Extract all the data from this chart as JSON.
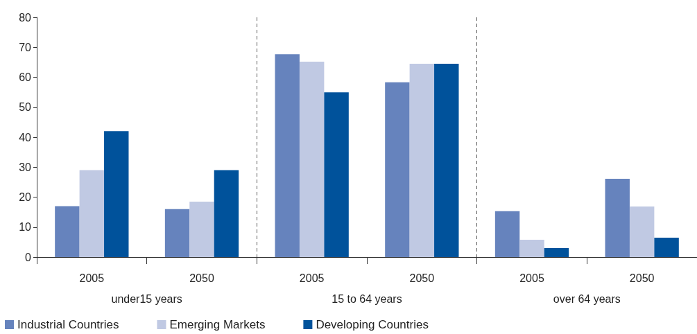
{
  "chart_data": {
    "type": "bar",
    "categories": [
      "2005",
      "2050",
      "2005",
      "2050",
      "2005",
      "2050"
    ],
    "annotations": [
      "under15 years",
      "15 to 64 years",
      "over 64 years"
    ],
    "series": [
      {
        "name": "Industrial Countries",
        "color": "#6683bd",
        "values": [
          17,
          16,
          67.7,
          58.3,
          15.3,
          26.1
        ]
      },
      {
        "name": "Emerging Markets",
        "color": "#c0c9e3",
        "values": [
          29,
          18.5,
          65.2,
          64.5,
          5.8,
          16.9
        ]
      },
      {
        "name": "Developing Countries",
        "color": "#00529b",
        "values": [
          42,
          29,
          55,
          64.5,
          3,
          6.5
        ]
      }
    ],
    "ylim": [
      0,
      80
    ],
    "yticks": [
      0,
      10,
      20,
      30,
      40,
      50,
      60,
      70,
      80
    ],
    "grid": false,
    "legend": "bottom left"
  }
}
